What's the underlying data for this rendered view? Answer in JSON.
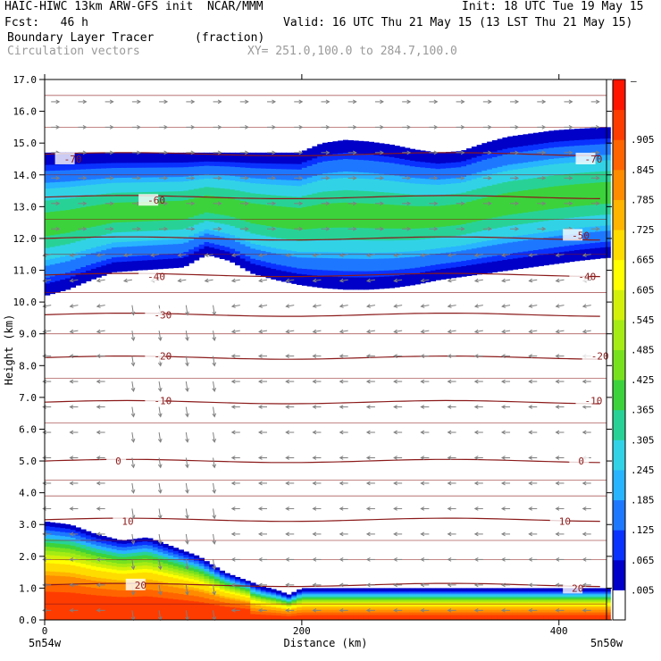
{
  "header": {
    "title_left": "HAIC-HIWC 13km ARW-GFS init  NCAR/MMM",
    "init": "Init: 18 UTC Tue 19 May 15",
    "fcst": "Fcst:   46 h",
    "valid": "Valid: 16 UTC Thu 21 May 15 (13 LST Thu 21 May 15)",
    "field": "Boundary Layer Tracer",
    "units": "(fraction)",
    "vectors": "Circulation vectors",
    "xy": "XY= 251.0,100.0 to 284.7,100.0"
  },
  "colors": {
    "contour": "#8b1a1a",
    "vector": "#808080",
    "colorbar": [
      "#ffffff",
      "#0000c8",
      "#0a32ff",
      "#1e78ff",
      "#28b4ff",
      "#32d2e6",
      "#28d296",
      "#3cd23c",
      "#78e11e",
      "#a5eb14",
      "#d2f00a",
      "#ffff00",
      "#ffdc00",
      "#ffb400",
      "#ff8c00",
      "#ff6400",
      "#ff3c00",
      "#ff1400"
    ]
  },
  "chart_data": {
    "type": "heatmap",
    "xlabel": "Distance (km)",
    "ylabel": "Height (km)",
    "xlim": [
      0,
      437
    ],
    "ylim": [
      0,
      17
    ],
    "x_ticks": [
      0,
      200,
      400
    ],
    "y_ticks": [
      "0.0",
      "1.0",
      "2.0",
      "3.0",
      "4.0",
      "5.0",
      "6.0",
      "7.0",
      "8.0",
      "9.0",
      "10.0",
      "11.0",
      "12.0",
      "13.0",
      "14.0",
      "15.0",
      "16.0",
      "17.0"
    ],
    "x_endpoint_labels": [
      "5n54w",
      "5n50w"
    ],
    "colorbar_labels": [
      ".005",
      ".065",
      ".125",
      ".185",
      ".245",
      ".305",
      ".365",
      ".425",
      ".485",
      ".545",
      ".605",
      ".665",
      ".725",
      ".785",
      ".845",
      ".905",
      "–"
    ],
    "contour_labels": [
      {
        "label": "-70",
        "x": 15,
        "y": 14.5
      },
      {
        "label": "-70",
        "x": 420,
        "y": 14.5
      },
      {
        "label": "-60",
        "x": 80,
        "y": 13.2
      },
      {
        "label": "-50",
        "x": 410,
        "y": 12.1
      },
      {
        "label": "-40",
        "x": 80,
        "y": 10.8
      },
      {
        "label": "-40",
        "x": 415,
        "y": 10.8
      },
      {
        "label": "-30",
        "x": 85,
        "y": 9.6
      },
      {
        "label": "-20",
        "x": 85,
        "y": 8.3
      },
      {
        "label": "-20",
        "x": 425,
        "y": 8.3
      },
      {
        "label": "-10",
        "x": 85,
        "y": 6.9
      },
      {
        "label": "-10",
        "x": 420,
        "y": 6.9
      },
      {
        "label": "0",
        "x": 55,
        "y": 5.0
      },
      {
        "label": "0",
        "x": 415,
        "y": 5.0
      },
      {
        "label": "10",
        "x": 60,
        "y": 3.1
      },
      {
        "label": "10",
        "x": 400,
        "y": 3.1
      },
      {
        "label": "20",
        "x": 70,
        "y": 1.1
      },
      {
        "label": "20",
        "x": 410,
        "y": 1.0
      }
    ],
    "temperature_contours": [
      -70,
      -60,
      -50,
      -40,
      -30,
      -20,
      -10,
      0,
      10,
      20
    ],
    "upper_layer": {
      "top_km": [
        14.7,
        14.7,
        14.7,
        14.7,
        14.7,
        14.7,
        14.7,
        14.7,
        14.7,
        14.7,
        14.7,
        14.7,
        15.0,
        15.1,
        15.05,
        14.95,
        14.8,
        14.7,
        14.75,
        15.0,
        15.2,
        15.3,
        15.4,
        15.45,
        15.5
      ],
      "bottom_km": [
        10.2,
        10.4,
        10.7,
        10.95,
        11.0,
        11.05,
        11.1,
        11.5,
        11.3,
        10.9,
        10.7,
        10.55,
        10.45,
        10.4,
        10.4,
        10.45,
        10.55,
        10.7,
        10.8,
        10.9,
        11.0,
        11.1,
        11.2,
        11.3,
        11.4
      ],
      "x_km": [
        0,
        18,
        36,
        54,
        72,
        90,
        108,
        126,
        144,
        162,
        180,
        198,
        216,
        234,
        252,
        270,
        288,
        306,
        324,
        342,
        360,
        378,
        396,
        414,
        437
      ],
      "peak_fraction": 0.4
    },
    "boundary_layer": {
      "x_km": [
        0,
        20,
        40,
        60,
        80,
        100,
        120,
        140,
        160,
        170,
        180,
        190,
        200,
        437
      ],
      "top_km": [
        3.1,
        3.0,
        2.7,
        2.5,
        2.6,
        2.3,
        2.0,
        1.5,
        1.2,
        1.05,
        0.95,
        0.8,
        1.0,
        1.0
      ],
      "peak_fraction": 1.0
    }
  }
}
